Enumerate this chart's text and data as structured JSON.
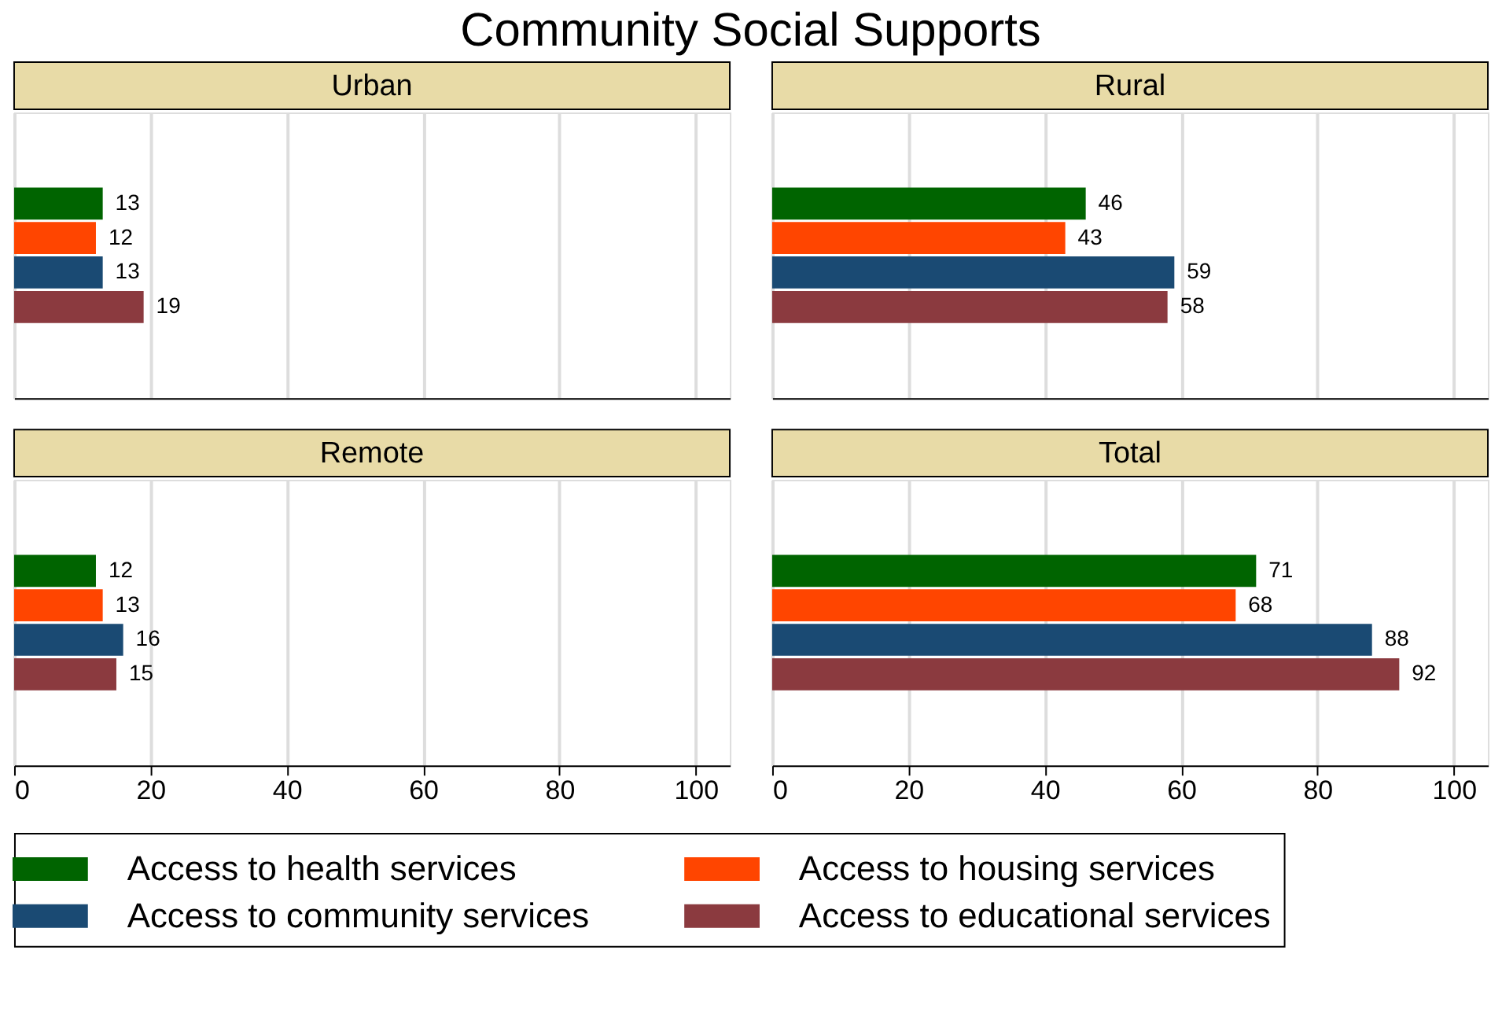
{
  "chart_data": [
    {
      "type": "other",
      "title": "Community Social Supports"
    },
    {
      "type": "bar",
      "orientation": "horizontal",
      "title": "Urban",
      "categories": [
        null
      ],
      "xlim": [
        0,
        105
      ],
      "xticks": [
        0,
        20,
        40,
        60,
        80,
        100
      ],
      "grid": "x",
      "tick_labels": false,
      "data_labels": true,
      "legend": "bottom",
      "series": [
        {
          "name": "Access to health services",
          "color": "#006400",
          "values": [
            13
          ]
        },
        {
          "name": "Access to housing services",
          "color": "#ff4500",
          "values": [
            12
          ]
        },
        {
          "name": "Access to community services",
          "color": "#1a4a73",
          "values": [
            13
          ]
        },
        {
          "name": "Access to educational services",
          "color": "#8b3a3f",
          "values": [
            19
          ]
        }
      ]
    },
    {
      "type": "bar",
      "orientation": "horizontal",
      "title": "Rural",
      "categories": [
        null
      ],
      "xlim": [
        0,
        105
      ],
      "xticks": [
        0,
        20,
        40,
        60,
        80,
        100
      ],
      "grid": "x",
      "tick_labels": false,
      "data_labels": true,
      "legend": "bottom",
      "series": [
        {
          "name": "Access to health services",
          "color": "#006400",
          "values": [
            46
          ]
        },
        {
          "name": "Access to housing services",
          "color": "#ff4500",
          "values": [
            43
          ]
        },
        {
          "name": "Access to community services",
          "color": "#1a4a73",
          "values": [
            59
          ]
        },
        {
          "name": "Access to educational services",
          "color": "#8b3a3f",
          "values": [
            58
          ]
        }
      ]
    },
    {
      "type": "bar",
      "orientation": "horizontal",
      "title": "Remote",
      "categories": [
        null
      ],
      "xlim": [
        0,
        105
      ],
      "xticks": [
        0,
        20,
        40,
        60,
        80,
        100
      ],
      "grid": "x",
      "tick_labels": "x",
      "data_labels": true,
      "legend": "bottom",
      "series": [
        {
          "name": "Access to health services",
          "color": "#006400",
          "values": [
            12
          ]
        },
        {
          "name": "Access to housing services",
          "color": "#ff4500",
          "values": [
            13
          ]
        },
        {
          "name": "Access to community services",
          "color": "#1a4a73",
          "values": [
            16
          ]
        },
        {
          "name": "Access to educational services",
          "color": "#8b3a3f",
          "values": [
            15
          ]
        }
      ]
    },
    {
      "type": "bar",
      "orientation": "horizontal",
      "title": "Total",
      "categories": [
        null
      ],
      "xlim": [
        0,
        105
      ],
      "xticks": [
        0,
        20,
        40,
        60,
        80,
        100
      ],
      "grid": "x",
      "tick_labels": "x",
      "data_labels": true,
      "legend": "bottom",
      "series": [
        {
          "name": "Access to health services",
          "color": "#006400",
          "values": [
            71
          ]
        },
        {
          "name": "Access to housing services",
          "color": "#ff4500",
          "values": [
            68
          ]
        },
        {
          "name": "Access to community services",
          "color": "#1a4a73",
          "values": [
            88
          ]
        },
        {
          "name": "Access to educational services",
          "color": "#8b3a3f",
          "values": [
            92
          ]
        }
      ]
    }
  ]
}
